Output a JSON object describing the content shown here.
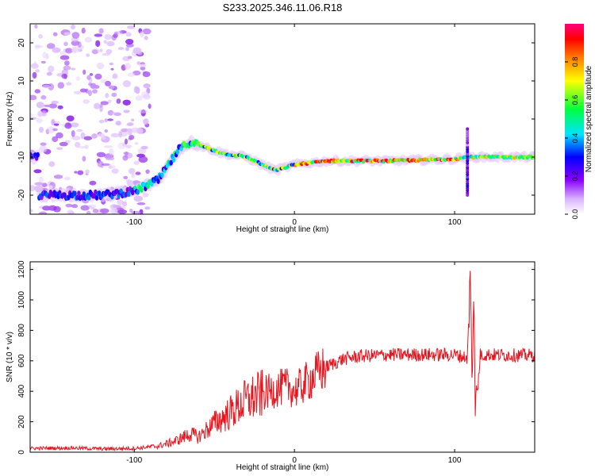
{
  "figure": {
    "title": "S233.2025.346.11.06.R18"
  },
  "chart_data": [
    {
      "type": "heatmap",
      "xlabel": "Height of straight line (km)",
      "ylabel": "Frequency (Hz)",
      "xlim": [
        -165,
        150
      ],
      "ylim": [
        -25,
        25
      ],
      "x_ticks": [
        -100,
        0,
        100
      ],
      "y_ticks": [
        -20,
        -10,
        0,
        10,
        20
      ],
      "colorbar": {
        "label": "Normalized spectral amplitude",
        "range": [
          0,
          1
        ],
        "ticks": [
          0.0,
          0.2,
          0.4,
          0.6,
          0.8
        ],
        "colormap": [
          "#ffffff",
          "#d9b3ff",
          "#7b00e0",
          "#0000ff",
          "#00e5ff",
          "#00ff40",
          "#ffff00",
          "#ff8000",
          "#ff0000",
          "#ff007f"
        ]
      },
      "ridge": {
        "description_points": [
          {
            "x": -160,
            "f": -20
          },
          {
            "x": -120,
            "f": -20
          },
          {
            "x": -100,
            "f": -19
          },
          {
            "x": -85,
            "f": -16
          },
          {
            "x": -72,
            "f": -8
          },
          {
            "x": -65,
            "f": -6
          },
          {
            "x": -55,
            "f": -7.5
          },
          {
            "x": -45,
            "f": -9
          },
          {
            "x": -30,
            "f": -10
          },
          {
            "x": -20,
            "f": -12
          },
          {
            "x": -12,
            "f": -13.5
          },
          {
            "x": 0,
            "f": -12
          },
          {
            "x": 20,
            "f": -11
          },
          {
            "x": 60,
            "f": -11
          },
          {
            "x": 100,
            "f": -10.5
          },
          {
            "x": 108,
            "f": -10
          },
          {
            "x": 150,
            "f": -10
          }
        ]
      }
    },
    {
      "type": "line",
      "xlabel": "Height of straight line (km)",
      "ylabel": "SNR (10 * v/v)",
      "xlim": [
        -165,
        150
      ],
      "ylim": [
        0,
        1250
      ],
      "x_ticks": [
        -100,
        0,
        100
      ],
      "y_ticks": [
        0,
        200,
        400,
        600,
        800,
        1000,
        1200
      ],
      "series": [
        {
          "color": "#e8141e",
          "points": [
            {
              "x": -165,
              "y": 25
            },
            {
              "x": -140,
              "y": 28
            },
            {
              "x": -120,
              "y": 22
            },
            {
              "x": -100,
              "y": 25
            },
            {
              "x": -85,
              "y": 40
            },
            {
              "x": -75,
              "y": 70
            },
            {
              "x": -65,
              "y": 120
            },
            {
              "x": -60,
              "y": 100
            },
            {
              "x": -50,
              "y": 190
            },
            {
              "x": -40,
              "y": 260
            },
            {
              "x": -30,
              "y": 340
            },
            {
              "x": -20,
              "y": 380
            },
            {
              "x": -10,
              "y": 420
            },
            {
              "x": -3,
              "y": 430
            },
            {
              "x": 0,
              "y": 400
            },
            {
              "x": 10,
              "y": 480
            },
            {
              "x": 20,
              "y": 560
            },
            {
              "x": 30,
              "y": 610
            },
            {
              "x": 40,
              "y": 630
            },
            {
              "x": 60,
              "y": 640
            },
            {
              "x": 80,
              "y": 640
            },
            {
              "x": 100,
              "y": 640
            },
            {
              "x": 108,
              "y": 620
            },
            {
              "x": 110,
              "y": 1240
            },
            {
              "x": 111,
              "y": 300
            },
            {
              "x": 112,
              "y": 1100
            },
            {
              "x": 113,
              "y": 200
            },
            {
              "x": 116,
              "y": 640
            },
            {
              "x": 150,
              "y": 635
            }
          ]
        }
      ]
    }
  ]
}
